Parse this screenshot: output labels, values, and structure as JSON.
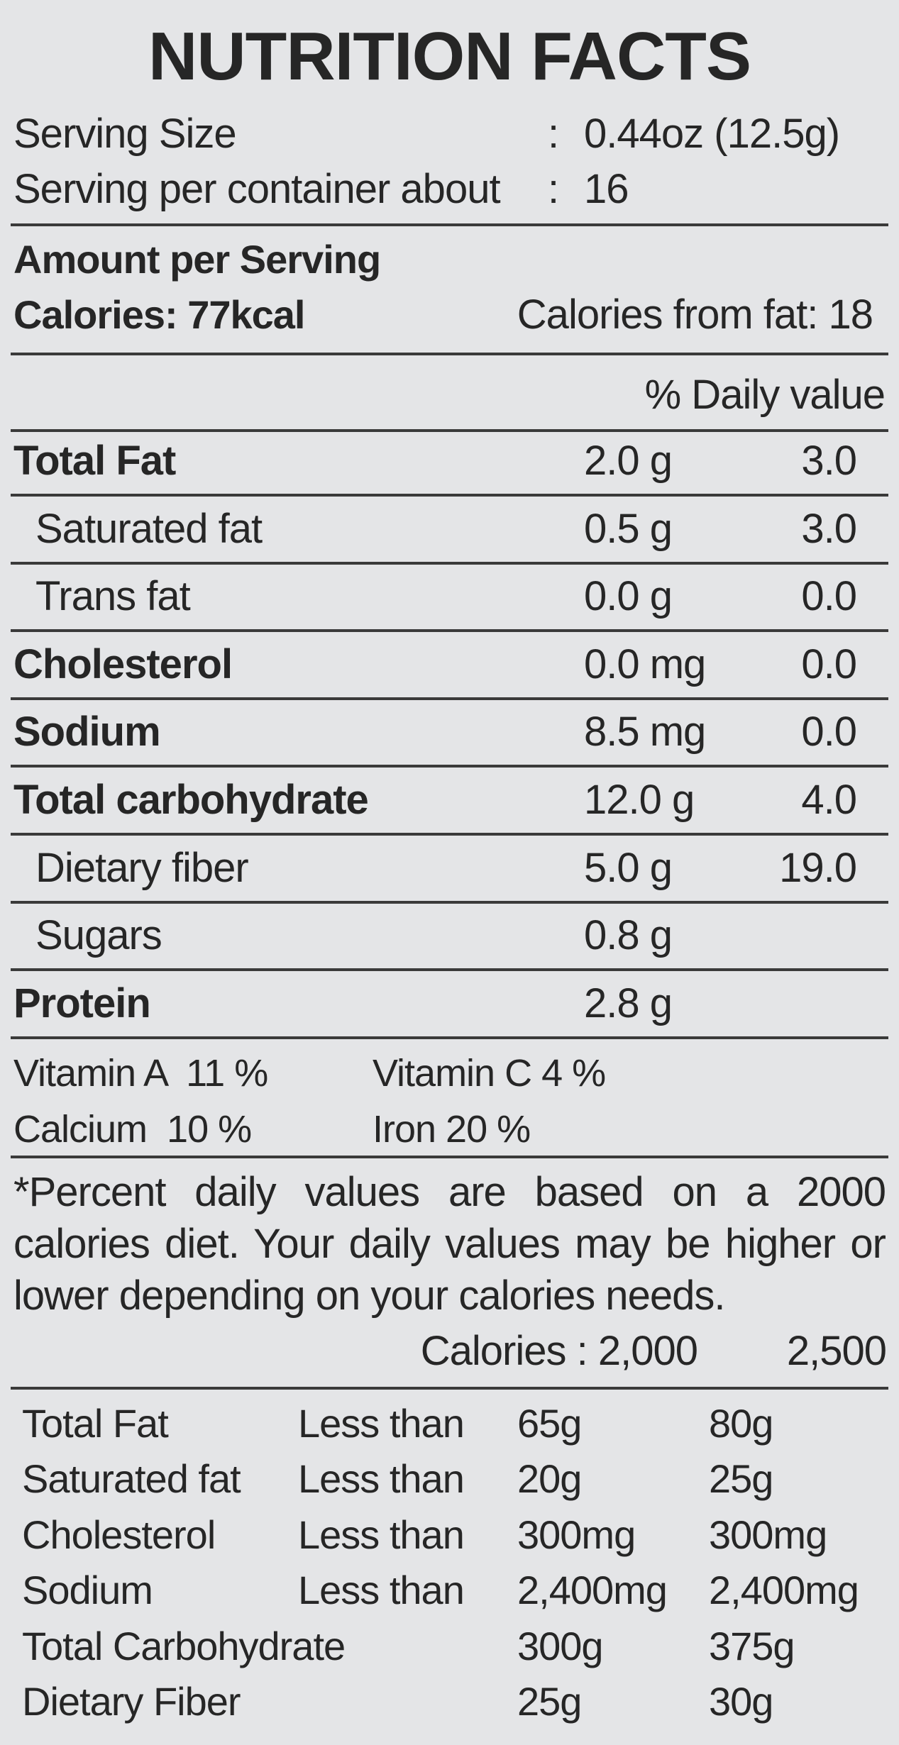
{
  "title": "NUTRITION FACTS",
  "serving": {
    "size_label": "Serving Size",
    "size_sep": ":",
    "size_value": "0.44oz (12.5g)",
    "per_label": "Serving per container about",
    "per_sep": ":",
    "per_value": "16"
  },
  "amount": {
    "heading": "Amount per Serving",
    "calories": "Calories: 77kcal",
    "calories_from_fat": "Calories from fat: 18"
  },
  "dv_heading": "% Daily value",
  "nutrients": [
    {
      "name": "Total Fat",
      "amount": "2.0 g",
      "dv": "3.0",
      "bold": true,
      "indent": false
    },
    {
      "name": "Saturated fat",
      "amount": "0.5 g",
      "dv": "3.0",
      "bold": false,
      "indent": true
    },
    {
      "name": "Trans fat",
      "amount": "0.0 g",
      "dv": "0.0",
      "bold": false,
      "indent": true
    },
    {
      "name": "Cholesterol",
      "amount": "0.0 mg",
      "dv": "0.0",
      "bold": true,
      "indent": false
    },
    {
      "name": "Sodium",
      "amount": "8.5 mg",
      "dv": "0.0",
      "bold": true,
      "indent": false
    },
    {
      "name": "Total carbohydrate",
      "amount": "12.0 g",
      "dv": "4.0",
      "bold": true,
      "indent": false
    },
    {
      "name": "Dietary fiber",
      "amount": "5.0 g",
      "dv": "19.0",
      "bold": false,
      "indent": true
    },
    {
      "name": "Sugars",
      "amount": "0.8 g",
      "dv": null,
      "bold": false,
      "indent": true
    },
    {
      "name": "Protein",
      "amount": "2.8 g",
      "dv": null,
      "bold": true,
      "indent": false
    }
  ],
  "vitamins": [
    [
      "Vitamin A  11 %",
      "Vitamin C 4 %"
    ],
    [
      "Calcium  10 %",
      "Iron 20 %"
    ]
  ],
  "footnote": [
    "*Percent daily values are based on a 2000",
    "calories diet. Your daily values may be higher or",
    "lower depending on your calories needs."
  ],
  "reference": {
    "header": [
      "Calories : 2,000",
      "2,500"
    ],
    "rows": [
      [
        "Total Fat",
        "Less than",
        "65g",
        "80g"
      ],
      [
        "Saturated fat",
        "Less than",
        "20g",
        "25g"
      ],
      [
        "Cholesterol",
        "Less than",
        "300mg",
        "300mg"
      ],
      [
        "Sodium",
        "Less than",
        "2,400mg",
        "2,400mg"
      ],
      [
        "Total Carbohydrate",
        null,
        "300g",
        "375g"
      ],
      [
        "Dietary Fiber",
        null,
        "25g",
        "30g"
      ]
    ]
  }
}
